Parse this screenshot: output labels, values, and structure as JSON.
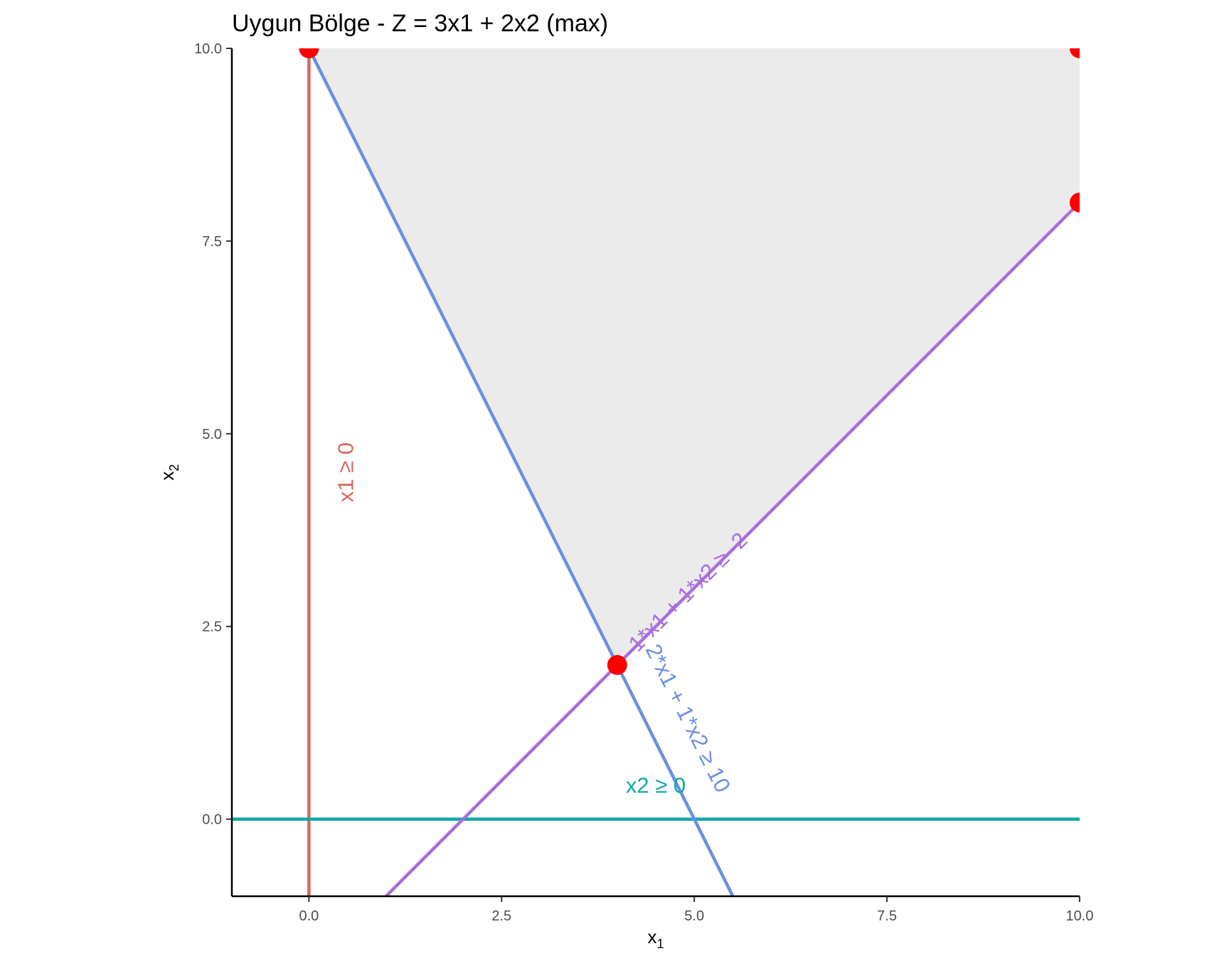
{
  "chart_data": {
    "type": "line",
    "title": "Uygun Bölge - Z = 3x1 + 2x2 (max)",
    "xlabel": "x",
    "xlabel_sub": "1",
    "ylabel": "x",
    "ylabel_sub": "2",
    "xlim": [
      -1,
      10
    ],
    "ylim": [
      -1,
      10
    ],
    "x_ticks": [
      0,
      2.5,
      5,
      7.5,
      10
    ],
    "x_tick_labels": [
      "0.0",
      "2.5",
      "5.0",
      "7.5",
      "10.0"
    ],
    "y_ticks": [
      0,
      2.5,
      5,
      7.5,
      10
    ],
    "y_tick_labels": [
      "0.0",
      "2.5",
      "5.0",
      "7.5",
      "10.0"
    ],
    "grid": false,
    "feasible_region": {
      "color": "#ebebeb",
      "vertices": [
        [
          0,
          10
        ],
        [
          10,
          10
        ],
        [
          10,
          8
        ],
        [
          4,
          2
        ]
      ]
    },
    "constraints": [
      {
        "label": "x1 ≥ 0",
        "color": "#d9675e",
        "points": [
          [
            0,
            -1
          ],
          [
            0,
            10
          ]
        ],
        "label_pos": [
          0.5,
          4.5
        ],
        "label_rotation": -90
      },
      {
        "label": "x2 ≥ 0",
        "color": "#11a8a8",
        "points": [
          [
            -1,
            0
          ],
          [
            10,
            0
          ]
        ],
        "label_pos": [
          4.5,
          0.42
        ],
        "label_rotation": 0
      },
      {
        "label": "-1*x1 + 1*x2 ≥ -2",
        "color": "#a86ee0",
        "points": [
          [
            1,
            -1
          ],
          [
            10,
            8
          ]
        ],
        "label_pos": [
          4.9,
          2.9
        ],
        "label_rotation": -45
      },
      {
        "label": "2*x1 + 1*x2 ≥ 10",
        "color": "#6a8fe3",
        "points": [
          [
            0,
            10
          ],
          [
            5.5,
            -1
          ]
        ],
        "label_pos": [
          4.9,
          1.3
        ],
        "label_rotation": 63.4
      }
    ],
    "vertices": {
      "color": "#ff0000",
      "points": [
        [
          0,
          10
        ],
        [
          10,
          10
        ],
        [
          10,
          8
        ],
        [
          4,
          2
        ]
      ]
    }
  }
}
